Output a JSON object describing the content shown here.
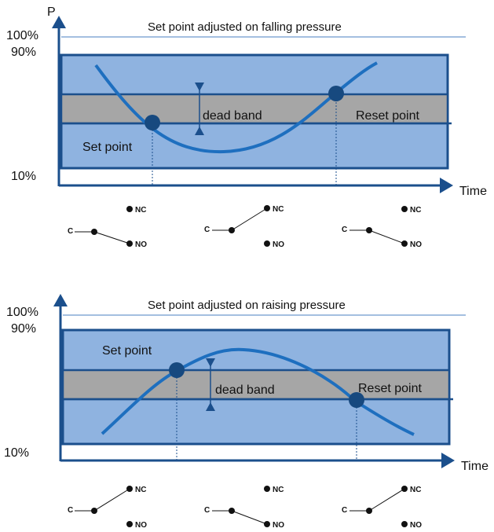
{
  "colors": {
    "frame": "#1b4f8c",
    "band_fill": "#8fb3e0",
    "dead_band_fill": "#a6a6a6",
    "curve": "#1e6fbf",
    "dot": "#17497f",
    "axis": "#1b4f8c",
    "thin_line": "#4a7fc0"
  },
  "icons": {
    "axis_arrow": "triangle-arrow-icon",
    "switch_contact": "dot-icon"
  },
  "top_chart": {
    "title": "Set point adjusted on falling pressure",
    "y_axis_label": "P",
    "x_axis_label": "Time",
    "pct_100": "100%",
    "pct_90": "90%",
    "pct_10": "10%",
    "dead_band_label": "dead band",
    "set_point_label": "Set point",
    "reset_point_label": "Reset point",
    "switches": [
      {
        "c": "C",
        "nc": "NC",
        "no": "NO",
        "state": "NO"
      },
      {
        "c": "C",
        "nc": "NC",
        "no": "NO",
        "state": "NC"
      },
      {
        "c": "C",
        "nc": "NC",
        "no": "NO",
        "state": "NO"
      }
    ]
  },
  "bottom_chart": {
    "title": "Set point adjusted on raising pressure",
    "x_axis_label": "Time",
    "pct_100": "100%",
    "pct_90": "90%",
    "pct_10": "10%",
    "dead_band_label": "dead band",
    "set_point_label": "Set point",
    "reset_point_label": "Reset point",
    "switches": [
      {
        "c": "C",
        "nc": "NC",
        "no": "NO",
        "state": "NC"
      },
      {
        "c": "C",
        "nc": "NC",
        "no": "NO",
        "state": "NO"
      },
      {
        "c": "C",
        "nc": "NC",
        "no": "NO",
        "state": "NC"
      }
    ]
  }
}
